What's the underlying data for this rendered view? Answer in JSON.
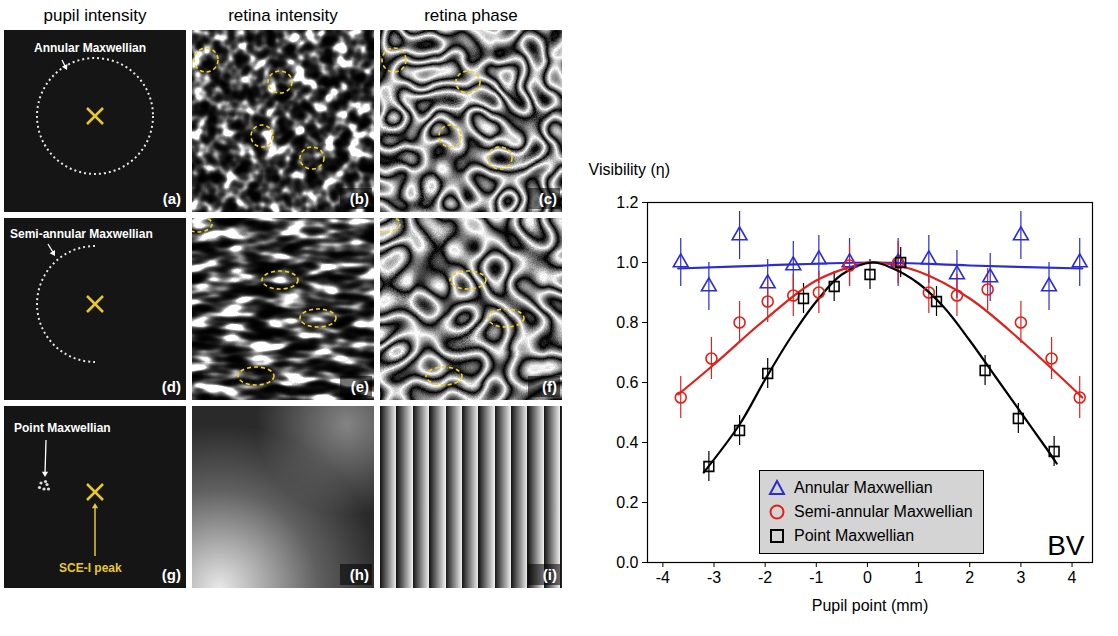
{
  "image_panels": {
    "column_titles": [
      "pupil intensity",
      "retina intensity",
      "retina phase"
    ],
    "rows": [
      {
        "label": "Annular Maxwellian",
        "letters": [
          "(a)",
          "(b)",
          "(c)"
        ]
      },
      {
        "label": "Semi-annular Maxwellian",
        "letters": [
          "(d)",
          "(e)",
          "(f)"
        ]
      },
      {
        "label": "Point Maxwellian",
        "letters": [
          "(g)",
          "(h)",
          "(i)"
        ]
      }
    ],
    "marker_label": "SCE-I peak"
  },
  "chart_data": {
    "type": "scatter",
    "x_label": "Pupil point (mm)",
    "y_label": "Visibility (η)",
    "annotation": "BV",
    "xlim": [
      -4.3,
      4.4
    ],
    "xticks": [
      -4,
      -3,
      -2,
      -1,
      0,
      1,
      2,
      3,
      4
    ],
    "ylim": [
      0,
      1.2
    ],
    "yticks": [
      {
        "value": 0,
        "label": "0.0"
      },
      {
        "value": 0.2,
        "label": "0.2"
      },
      {
        "value": 0.4,
        "label": "0.4"
      },
      {
        "value": 0.6,
        "label": "0.6"
      },
      {
        "value": 0.8,
        "label": "0.8"
      },
      {
        "value": 1,
        "label": "1.0"
      },
      {
        "value": 1.2,
        "label": "1.2"
      }
    ],
    "legend": "bottom",
    "series": [
      {
        "name": "Annular Maxwellian",
        "color": "#2b2bd8",
        "marker": "triangle",
        "x": [
          -3.65,
          -3.1,
          -2.5,
          -1.95,
          -1.45,
          -0.95,
          -0.35,
          0.6,
          1.2,
          1.75,
          2.4,
          3.0,
          3.55,
          4.15
        ],
        "values": [
          1.0,
          0.92,
          1.09,
          0.93,
          0.99,
          1.01,
          1.0,
          1.0,
          1.01,
          0.96,
          0.95,
          1.09,
          0.92,
          1.0
        ],
        "errors": [
          0.08,
          0.08,
          0.08,
          0.08,
          0.08,
          0.08,
          0.08,
          0.08,
          0.08,
          0.08,
          0.08,
          0.08,
          0.08,
          0.08
        ],
        "fit": {
          "x": [
            -3.7,
            -2,
            0.2,
            2,
            4.2
          ],
          "values": [
            0.98,
            0.99,
            1.0,
            0.99,
            0.98
          ]
        }
      },
      {
        "name": "Semi-annular Maxwellian",
        "color": "#e0201b",
        "marker": "circle",
        "x": [
          -3.65,
          -3.05,
          -2.5,
          -1.95,
          -1.45,
          -0.95,
          -0.35,
          0.6,
          1.2,
          1.75,
          2.35,
          3.0,
          3.6,
          4.15
        ],
        "values": [
          0.55,
          0.68,
          0.8,
          0.87,
          0.89,
          0.9,
          0.99,
          1.0,
          0.9,
          0.89,
          0.91,
          0.8,
          0.68,
          0.55
        ],
        "errors": [
          0.07,
          0.07,
          0.07,
          0.07,
          0.07,
          0.07,
          0.07,
          0.07,
          0.07,
          0.07,
          0.07,
          0.07,
          0.07,
          0.07
        ],
        "fit": {
          "x": [
            -3.7,
            -3,
            -2,
            -1,
            0,
            0.2,
            1,
            2,
            3,
            4.2
          ],
          "values": [
            0.56,
            0.66,
            0.81,
            0.94,
            1.0,
            1.0,
            0.97,
            0.88,
            0.74,
            0.55
          ]
        }
      },
      {
        "name": "Point Maxwellian",
        "color": "#000000",
        "marker": "square",
        "x": [
          -3.1,
          -2.5,
          -1.95,
          -1.25,
          -0.65,
          0.05,
          0.65,
          1.35,
          2.3,
          2.95,
          3.65
        ],
        "values": [
          0.32,
          0.44,
          0.63,
          0.88,
          0.92,
          0.96,
          1.0,
          0.87,
          0.64,
          0.48,
          0.37
        ],
        "errors": [
          0.05,
          0.05,
          0.05,
          0.05,
          0.05,
          0.05,
          0.05,
          0.05,
          0.05,
          0.05,
          0.05
        ],
        "fit": {
          "x": [
            -3.2,
            -2.5,
            -2,
            -1.5,
            -1,
            -0.5,
            0.1,
            0.5,
            1,
            1.5,
            2,
            2.5,
            3,
            3.5,
            3.7
          ],
          "values": [
            0.3,
            0.46,
            0.61,
            0.75,
            0.87,
            0.96,
            1.0,
            0.98,
            0.93,
            0.85,
            0.74,
            0.62,
            0.5,
            0.38,
            0.33
          ]
        }
      }
    ]
  }
}
